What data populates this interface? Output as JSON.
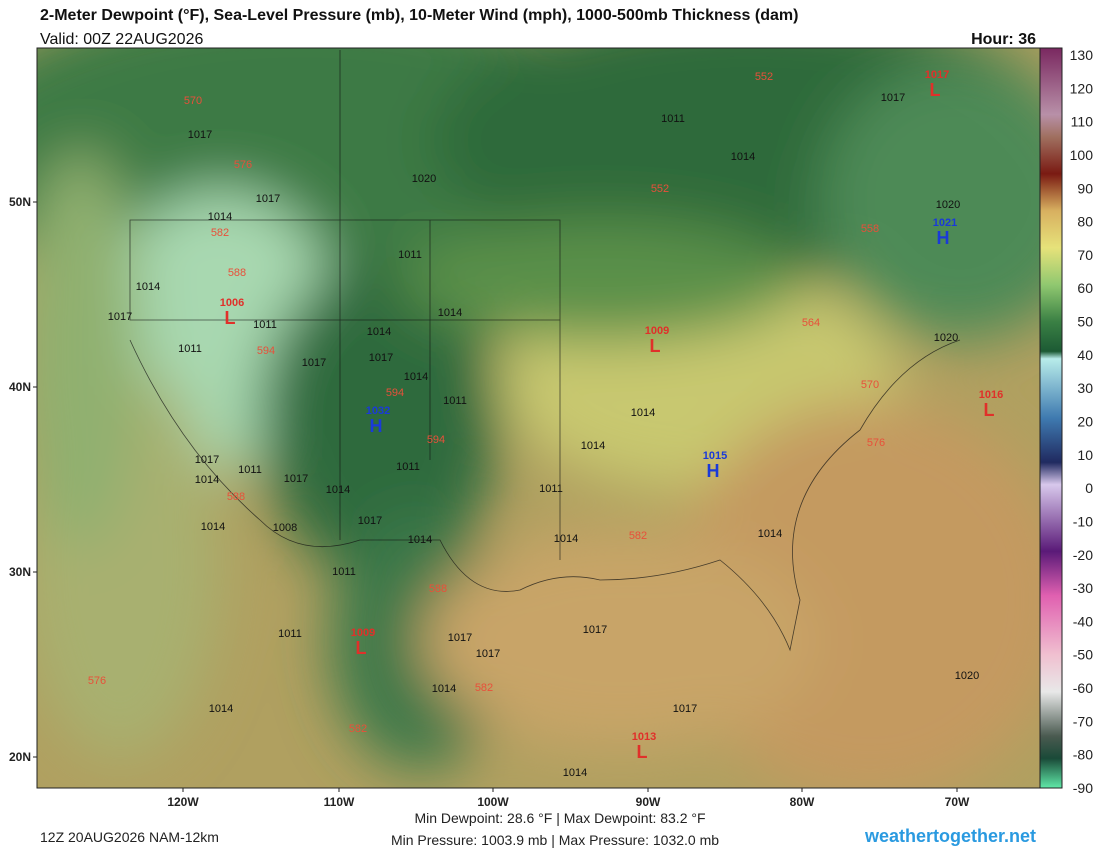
{
  "header": {
    "title": "2-Meter Dewpoint (°F), Sea-Level Pressure (mb), 10-Meter Wind (mph), 1000-500mb Thickness (dam)",
    "valid": "Valid: 00Z 22AUG2026",
    "hour": "Hour: 36"
  },
  "map": {
    "lat_labels": [
      "50N",
      "40N",
      "30N",
      "20N"
    ],
    "lon_labels": [
      "120W",
      "110W",
      "100W",
      "90W",
      "80W",
      "70W"
    ],
    "pressure_centers": [
      {
        "letter": "L",
        "value": "1017"
      },
      {
        "letter": "H",
        "value": "1021"
      },
      {
        "letter": "L",
        "value": "1016"
      },
      {
        "letter": "L",
        "value": "1009"
      },
      {
        "letter": "H",
        "value": "1015"
      },
      {
        "letter": "H",
        "value": "1032"
      },
      {
        "letter": "L",
        "value": "1006"
      },
      {
        "letter": "L",
        "value": "1009"
      },
      {
        "letter": "L",
        "value": "1013"
      }
    ],
    "isobar_labels": [
      "1017",
      "1017",
      "1014",
      "1011",
      "1017",
      "1020",
      "1011",
      "1011",
      "1014",
      "1017",
      "1014",
      "1017",
      "1011",
      "1014",
      "1014",
      "1017",
      "1011",
      "1014",
      "1017",
      "1011",
      "1014",
      "1014",
      "1017",
      "1014",
      "1011",
      "1014",
      "1014",
      "1014",
      "1014",
      "1008",
      "1017",
      "1011",
      "1014",
      "1017",
      "1017",
      "1017",
      "1014",
      "1020",
      "1020",
      "1014",
      "1017",
      "1011",
      "1020",
      "1011",
      "1014"
    ],
    "thickness_labels": [
      "570",
      "576",
      "582",
      "588",
      "594",
      "594",
      "594",
      "588",
      "588",
      "582",
      "582",
      "576",
      "582",
      "576",
      "570",
      "564",
      "558",
      "552",
      "552"
    ]
  },
  "colorbar": {
    "ticks": [
      130,
      120,
      110,
      100,
      90,
      80,
      70,
      60,
      50,
      40,
      30,
      20,
      10,
      0,
      -10,
      -20,
      -30,
      -40,
      -50,
      -60,
      -70,
      -80,
      -90
    ]
  },
  "footer": {
    "run": "12Z 20AUG2026 NAM-12km",
    "dewpoint": "Min Dewpoint:  28.6 °F | Max Dewpoint:  83.2 °F",
    "pressure": "Min Pressure: 1003.9 mb | Max Pressure: 1032.0 mb",
    "site": "weathertogether.net"
  }
}
